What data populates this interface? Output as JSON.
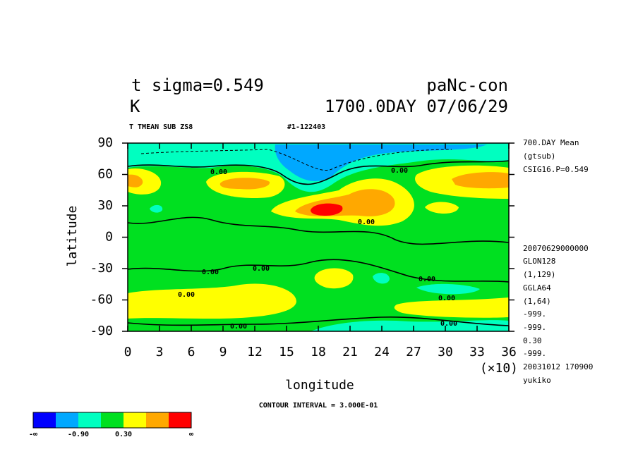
{
  "chart_data": {
    "type": "contour",
    "title_left": "t sigma=0.549",
    "title_right": "paNc-con",
    "unit": "K",
    "date": "1700.0DAY 07/06/29",
    "subtitle_left": "T TMEAN SUB ZS8",
    "subtitle_right": "#1-122403",
    "xlabel": "longitude",
    "ylabel": "latitude",
    "x_scale_note": "(×10)",
    "xlim": [
      0,
      360
    ],
    "xticks": [
      0,
      {
        "value": 30,
        "label": "3"
      },
      {
        "value": 60,
        "label": "6"
      },
      {
        "value": 90,
        "label": "9"
      },
      {
        "value": 120,
        "label": "12"
      },
      {
        "value": 150,
        "label": "15"
      },
      {
        "value": 180,
        "label": "18"
      },
      {
        "value": 210,
        "label": "21"
      },
      {
        "value": 240,
        "label": "24"
      },
      {
        "value": 270,
        "label": "27"
      },
      {
        "value": 300,
        "label": "30"
      },
      {
        "value": 330,
        "label": "33"
      },
      {
        "value": 360,
        "label": "36"
      }
    ],
    "ylim": [
      -90,
      90
    ],
    "yticks": [
      -90,
      -60,
      -30,
      0,
      30,
      60,
      90
    ],
    "contour_interval": "CONTOUR INTERVAL = 3.000E-01",
    "contour_labels": [
      "0.00",
      "0.00",
      "0.00",
      "0.00",
      "0.00",
      "0.00",
      "0.00",
      "0.00",
      "0.00",
      "0.00"
    ],
    "info": [
      "700.DAY Mean",
      "(gtsub)",
      "CSIG16.P=0.549",
      "20070629000000",
      "GLON128",
      "(1,129)",
      "GGLA64",
      "(1,64)",
      "-999.",
      "-999.",
      "0.30",
      "-999.",
      "20031012 170900",
      "yukiko"
    ],
    "colorbar": {
      "colors": [
        "#0000ff",
        "#00a8ff",
        "#00ffc0",
        "#00e020",
        "#ffff00",
        "#ffa800",
        "#ff0000"
      ],
      "labels": [
        "-∞",
        "-0.90",
        "0.30",
        "∞"
      ]
    }
  }
}
